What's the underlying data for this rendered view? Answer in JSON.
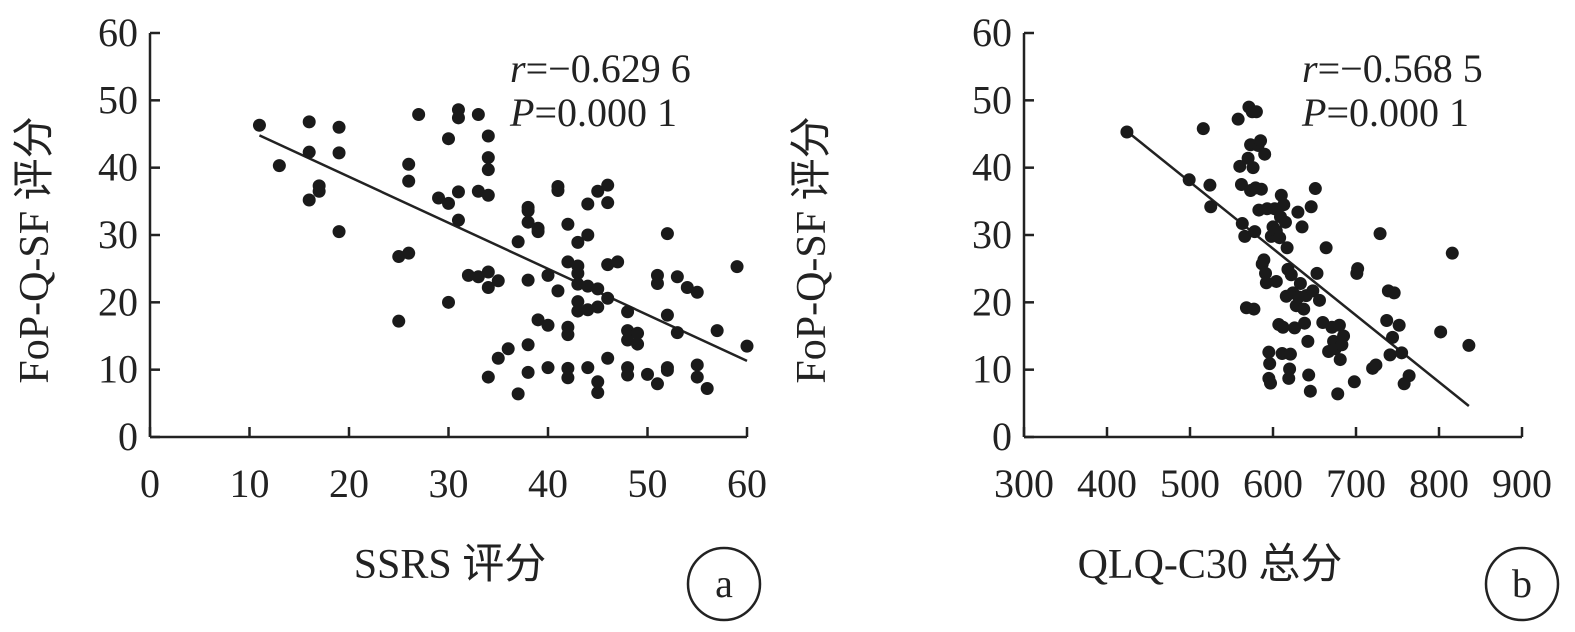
{
  "chart_data": [
    {
      "type": "scatter",
      "panel_label": "a",
      "xlabel": "SSRS 评分",
      "ylabel": "FoP-Q-SF 评分",
      "xlim": [
        0,
        60
      ],
      "ylim": [
        0,
        60
      ],
      "xticks": [
        "0",
        "10",
        "20",
        "30",
        "40",
        "50",
        "60"
      ],
      "yticks": [
        "0",
        "10",
        "20",
        "30",
        "40",
        "50",
        "60"
      ],
      "stats": {
        "r_symbol": "r",
        "r_value": "=−0.629 6",
        "p_symbol": "P",
        "p_value": "=0.000 1"
      },
      "trendline": {
        "x": [
          11,
          60
        ],
        "y": [
          44.8,
          11.3
        ]
      },
      "points": [
        [
          11,
          46.3
        ],
        [
          13,
          40.3
        ],
        [
          16,
          46.8
        ],
        [
          16,
          42.3
        ],
        [
          16,
          35.2
        ],
        [
          17,
          37.3
        ],
        [
          17,
          36.5
        ],
        [
          19,
          46.0
        ],
        [
          19,
          42.2
        ],
        [
          19,
          30.5
        ],
        [
          25,
          26.8
        ],
        [
          25,
          17.2
        ],
        [
          26,
          27.3
        ],
        [
          26,
          40.5
        ],
        [
          26,
          38.0
        ],
        [
          27,
          47.9
        ],
        [
          29,
          35.5
        ],
        [
          30,
          44.3
        ],
        [
          30,
          34.7
        ],
        [
          30,
          20.0
        ],
        [
          31,
          48.6
        ],
        [
          31,
          47.4
        ],
        [
          31,
          36.4
        ],
        [
          31,
          32.2
        ],
        [
          32,
          24.0
        ],
        [
          33,
          47.9
        ],
        [
          33,
          36.5
        ],
        [
          33,
          23.8
        ],
        [
          34,
          44.7
        ],
        [
          34,
          41.5
        ],
        [
          34,
          39.7
        ],
        [
          34,
          35.9
        ],
        [
          34,
          24.5
        ],
        [
          34,
          22.2
        ],
        [
          34,
          8.9
        ],
        [
          35,
          23.2
        ],
        [
          35,
          11.7
        ],
        [
          36,
          13.1
        ],
        [
          37,
          29.0
        ],
        [
          37,
          6.4
        ],
        [
          38,
          34.1
        ],
        [
          38,
          33.6
        ],
        [
          38,
          31.9
        ],
        [
          38,
          23.3
        ],
        [
          38,
          13.7
        ],
        [
          38,
          9.6
        ],
        [
          39,
          31.0
        ],
        [
          39,
          30.5
        ],
        [
          39,
          17.4
        ],
        [
          40,
          24.0
        ],
        [
          40,
          16.6
        ],
        [
          40,
          10.3
        ],
        [
          41,
          37.2
        ],
        [
          41,
          36.6
        ],
        [
          41,
          21.7
        ],
        [
          42,
          31.6
        ],
        [
          42,
          26.0
        ],
        [
          42,
          16.3
        ],
        [
          42,
          15.2
        ],
        [
          42,
          10.2
        ],
        [
          42,
          8.8
        ],
        [
          43,
          28.9
        ],
        [
          43,
          25.4
        ],
        [
          43,
          24.3
        ],
        [
          43,
          22.7
        ],
        [
          43,
          20.1
        ],
        [
          43,
          18.7
        ],
        [
          44,
          34.6
        ],
        [
          44,
          30.0
        ],
        [
          44,
          22.4
        ],
        [
          44,
          18.9
        ],
        [
          44,
          10.3
        ],
        [
          45,
          36.5
        ],
        [
          45,
          22.0
        ],
        [
          45,
          19.3
        ],
        [
          45,
          8.2
        ],
        [
          45,
          6.6
        ],
        [
          46,
          37.4
        ],
        [
          46,
          34.8
        ],
        [
          46,
          25.6
        ],
        [
          46,
          20.6
        ],
        [
          46,
          11.7
        ],
        [
          47,
          26.0
        ],
        [
          48,
          18.6
        ],
        [
          48,
          15.8
        ],
        [
          48,
          14.4
        ],
        [
          48,
          10.3
        ],
        [
          48,
          9.2
        ],
        [
          49,
          15.4
        ],
        [
          49,
          13.8
        ],
        [
          50,
          9.3
        ],
        [
          51,
          24.0
        ],
        [
          51,
          22.8
        ],
        [
          51,
          7.9
        ],
        [
          52,
          30.2
        ],
        [
          52,
          18.1
        ],
        [
          52,
          10.3
        ],
        [
          52,
          9.9
        ],
        [
          53,
          23.8
        ],
        [
          53,
          15.5
        ],
        [
          54,
          22.2
        ],
        [
          55,
          21.5
        ],
        [
          55,
          10.7
        ],
        [
          55,
          8.9
        ],
        [
          56,
          7.2
        ],
        [
          57,
          15.8
        ],
        [
          59,
          25.3
        ],
        [
          60,
          13.5
        ]
      ]
    },
    {
      "type": "scatter",
      "panel_label": "b",
      "xlabel": "QLQ-C30 总分",
      "ylabel": "FoP-Q-SF 评分",
      "xlim": [
        300,
        900
      ],
      "ylim": [
        0,
        60
      ],
      "xticks": [
        "300",
        "400",
        "500",
        "600",
        "700",
        "800",
        "900"
      ],
      "yticks": [
        "0",
        "10",
        "20",
        "30",
        "40",
        "50",
        "60"
      ],
      "stats": {
        "r_symbol": "r",
        "r_value": "=−0.568 5",
        "p_symbol": "P",
        "p_value": "=0.000 1"
      },
      "trendline": {
        "x": [
          425,
          836
        ],
        "y": [
          45.3,
          4.6
        ]
      },
      "points": [
        [
          424,
          45.3
        ],
        [
          499,
          38.2
        ],
        [
          516,
          45.8
        ],
        [
          524,
          37.4
        ],
        [
          525,
          34.2
        ],
        [
          558,
          47.2
        ],
        [
          560,
          40.2
        ],
        [
          562,
          37.5
        ],
        [
          563,
          31.7
        ],
        [
          566,
          29.8
        ],
        [
          568,
          19.2
        ],
        [
          570,
          41.4
        ],
        [
          571,
          49.0
        ],
        [
          573,
          43.4
        ],
        [
          573,
          36.6
        ],
        [
          575,
          48.3
        ],
        [
          576,
          40.0
        ],
        [
          577,
          19.0
        ],
        [
          578,
          30.5
        ],
        [
          579,
          37.0
        ],
        [
          580,
          48.3
        ],
        [
          582,
          43.3
        ],
        [
          583,
          33.7
        ],
        [
          585,
          44.0
        ],
        [
          586,
          36.8
        ],
        [
          587,
          25.7
        ],
        [
          589,
          26.3
        ],
        [
          590,
          42.0
        ],
        [
          591,
          24.3
        ],
        [
          592,
          22.9
        ],
        [
          593,
          33.9
        ],
        [
          595,
          12.6
        ],
        [
          595,
          8.7
        ],
        [
          596,
          10.9
        ],
        [
          597,
          8.0
        ],
        [
          598,
          29.8
        ],
        [
          600,
          31.2
        ],
        [
          602,
          33.9
        ],
        [
          604,
          30.6
        ],
        [
          604,
          23.1
        ],
        [
          607,
          16.7
        ],
        [
          608,
          29.6
        ],
        [
          609,
          32.7
        ],
        [
          610,
          35.9
        ],
        [
          611,
          12.4
        ],
        [
          612,
          16.3
        ],
        [
          613,
          34.5
        ],
        [
          615,
          31.9
        ],
        [
          616,
          20.9
        ],
        [
          617,
          28.1
        ],
        [
          618,
          24.9
        ],
        [
          619,
          8.7
        ],
        [
          620,
          10.1
        ],
        [
          621,
          12.3
        ],
        [
          622,
          24.1
        ],
        [
          624,
          21.4
        ],
        [
          626,
          16.2
        ],
        [
          628,
          19.5
        ],
        [
          630,
          33.4
        ],
        [
          631,
          20.8
        ],
        [
          633,
          22.8
        ],
        [
          635,
          31.2
        ],
        [
          637,
          19.0
        ],
        [
          638,
          16.9
        ],
        [
          640,
          21.0
        ],
        [
          642,
          14.2
        ],
        [
          643,
          9.2
        ],
        [
          645,
          6.8
        ],
        [
          646,
          34.2
        ],
        [
          648,
          21.7
        ],
        [
          651,
          36.9
        ],
        [
          653,
          24.3
        ],
        [
          656,
          20.3
        ],
        [
          660,
          17.0
        ],
        [
          664,
          28.1
        ],
        [
          667,
          12.7
        ],
        [
          671,
          16.3
        ],
        [
          673,
          14.2
        ],
        [
          675,
          13.1
        ],
        [
          678,
          6.4
        ],
        [
          680,
          16.6
        ],
        [
          681,
          11.5
        ],
        [
          683,
          13.7
        ],
        [
          685,
          15.0
        ],
        [
          698,
          8.2
        ],
        [
          701,
          24.3
        ],
        [
          702,
          25.0
        ],
        [
          720,
          10.2
        ],
        [
          724,
          10.7
        ],
        [
          729,
          30.2
        ],
        [
          737,
          17.3
        ],
        [
          739,
          21.7
        ],
        [
          741,
          12.2
        ],
        [
          744,
          14.8
        ],
        [
          746,
          21.4
        ],
        [
          752,
          16.6
        ],
        [
          755,
          12.5
        ],
        [
          758,
          7.9
        ],
        [
          764,
          9.1
        ],
        [
          802,
          15.6
        ],
        [
          816,
          27.3
        ],
        [
          836,
          13.6
        ]
      ]
    }
  ]
}
